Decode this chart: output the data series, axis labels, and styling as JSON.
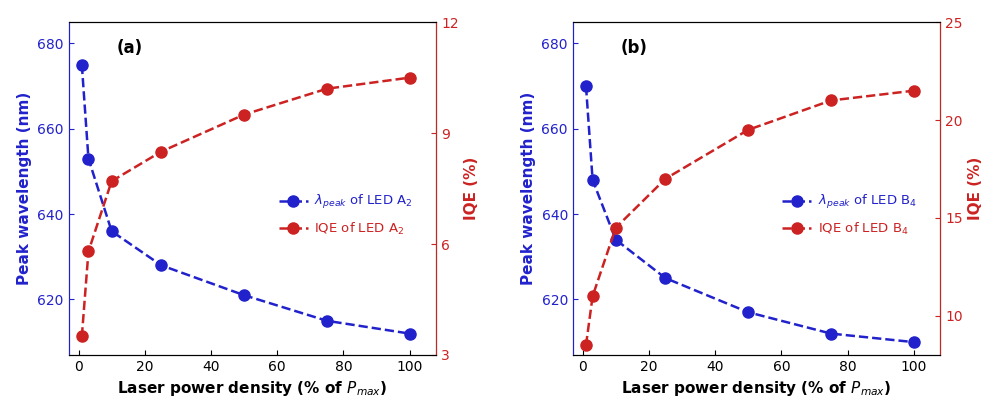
{
  "panel_a": {
    "label": "(a)",
    "x": [
      1,
      3,
      10,
      25,
      50,
      75,
      100
    ],
    "blue_y": [
      675,
      653,
      636,
      628,
      621,
      615,
      612
    ],
    "red_y": [
      3.5,
      5.8,
      7.7,
      8.5,
      9.5,
      10.2,
      10.5
    ],
    "blue_label": "$\\lambda_{peak}$ of LED A$_2$",
    "red_label": "IQE of LED A$_2$",
    "ylim_left": [
      607,
      685
    ],
    "ylim_right": [
      3,
      12
    ],
    "yticks_left": [
      620,
      640,
      660,
      680
    ],
    "yticks_right": [
      3,
      6,
      9,
      12
    ]
  },
  "panel_b": {
    "label": "(b)",
    "x": [
      1,
      3,
      10,
      25,
      50,
      75,
      100
    ],
    "blue_y": [
      670,
      648,
      634,
      625,
      617,
      612,
      610
    ],
    "red_y": [
      8.5,
      11.0,
      14.5,
      17.0,
      19.5,
      21.0,
      21.5
    ],
    "blue_label": "$\\lambda_{peak}$ of LED B$_4$",
    "red_label": "IQE of LED B$_4$",
    "ylim_left": [
      607,
      685
    ],
    "ylim_right": [
      8,
      25
    ],
    "yticks_left": [
      620,
      640,
      660,
      680
    ],
    "yticks_right": [
      10,
      15,
      20,
      25
    ]
  },
  "xlabel": "Laser power density (% of $P_{max}$)",
  "ylabel_left": "Peak wavelength (nm)",
  "ylabel_right": "IQE (%)",
  "xticks": [
    0,
    20,
    40,
    60,
    80,
    100
  ],
  "xlim": [
    -3,
    108
  ],
  "blue_color": "#2222cc",
  "red_color": "#cc2222",
  "marker_size": 8,
  "line_width": 1.8,
  "bg_color": "#ffffff"
}
